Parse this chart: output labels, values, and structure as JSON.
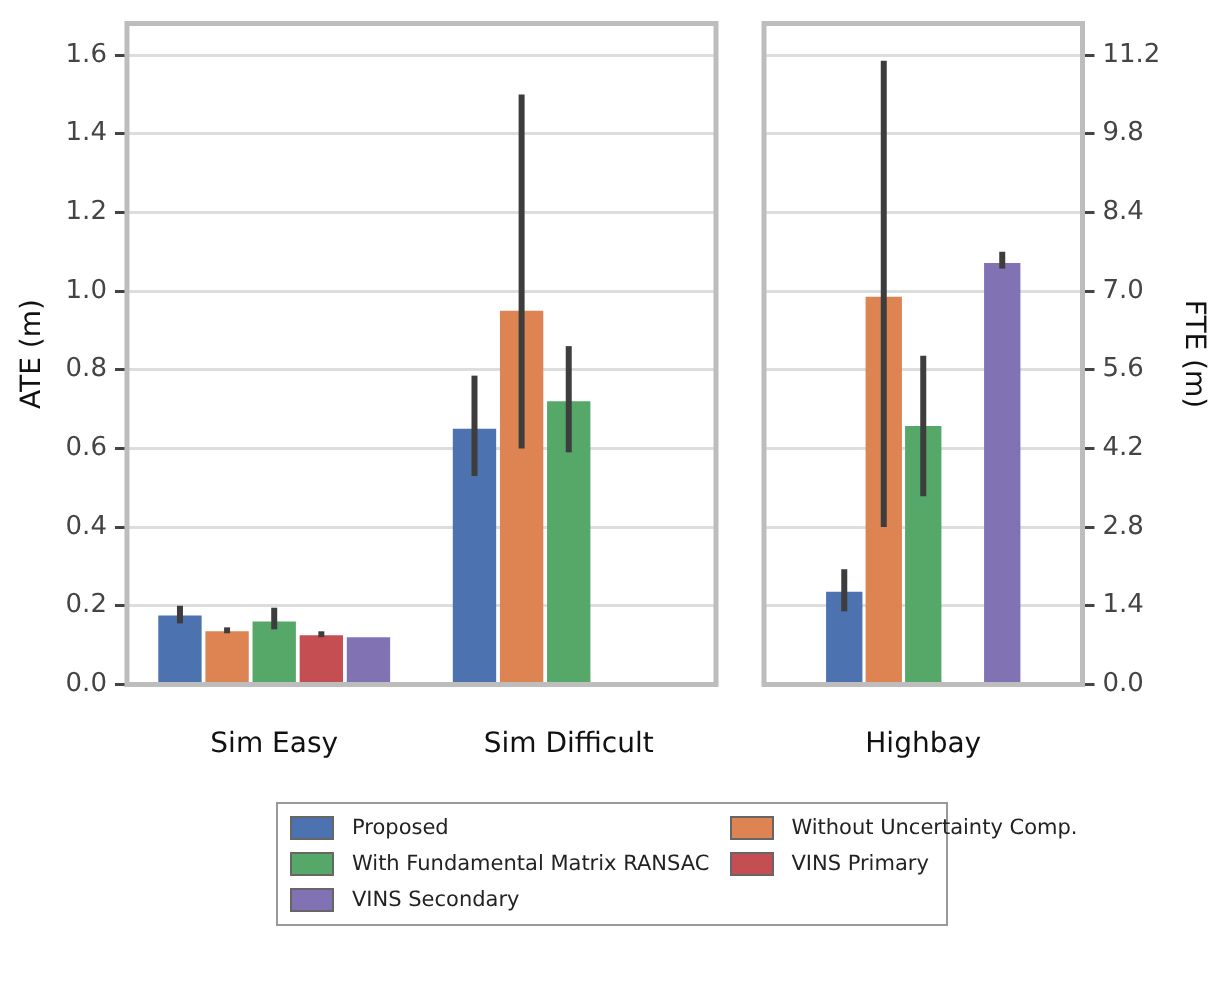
{
  "chart_data": [
    {
      "type": "bar",
      "ylabel": "ATE (m)",
      "categories": [
        "Sim Easy",
        "Sim Difficult"
      ],
      "ylim": [
        0,
        1.68
      ],
      "yticks": [
        {
          "value": 0,
          "label": "0.0"
        },
        0.2,
        0.4,
        0.6,
        0.8,
        {
          "value": 1,
          "label": "1.0"
        },
        1.2,
        1.4,
        1.6
      ],
      "grid": "y",
      "legend": "bottom",
      "series": [
        {
          "name": "Proposed",
          "color": "#4c72b0",
          "values": [
            0.175,
            0.65
          ],
          "errors": [
            [
              0.155,
              0.2
            ],
            [
              0.53,
              0.785
            ]
          ]
        },
        {
          "name": "Without Uncertainty Comp.",
          "color": "#dd8452",
          "values": [
            0.135,
            0.95
          ],
          "errors": [
            [
              0.13,
              0.145
            ],
            [
              0.6,
              1.5
            ]
          ]
        },
        {
          "name": "With Fundamental Matrix RANSAC",
          "color": "#55a868",
          "values": [
            0.16,
            0.72
          ],
          "errors": [
            [
              0.14,
              0.195
            ],
            [
              0.59,
              0.86
            ]
          ]
        },
        {
          "name": "VINS Primary",
          "color": "#c44e52",
          "values": [
            0.125,
            null
          ],
          "errors": [
            [
              0.12,
              0.135
            ],
            null
          ]
        },
        {
          "name": "VINS Secondary",
          "color": "#8172b3",
          "values": [
            0.12,
            null
          ],
          "errors": [
            null,
            null
          ]
        }
      ]
    },
    {
      "type": "bar",
      "y2label": "FTE (m)",
      "categories": [
        "Highbay"
      ],
      "y2lim": [
        0,
        11.76
      ],
      "y2ticks": [
        {
          "value": 0,
          "label": "0.0"
        },
        1.4,
        2.8,
        4.2,
        5.6,
        {
          "value": 7,
          "label": "7.0"
        },
        8.4,
        9.8,
        11.2
      ],
      "grid": "y",
      "legend": "bottom",
      "series": [
        {
          "name": "Proposed",
          "color": "#4c72b0",
          "axis": "y2",
          "values": [
            1.65
          ],
          "errors": [
            [
              1.3,
              2.05
            ]
          ]
        },
        {
          "name": "Without Uncertainty Comp.",
          "color": "#dd8452",
          "axis": "y2",
          "values": [
            6.9
          ],
          "errors": [
            [
              2.8,
              11.1
            ]
          ]
        },
        {
          "name": "With Fundamental Matrix RANSAC",
          "color": "#55a868",
          "axis": "y2",
          "values": [
            4.6
          ],
          "errors": [
            [
              3.35,
              5.85
            ]
          ]
        },
        {
          "name": "VINS Primary",
          "color": "#c44e52",
          "axis": "y2",
          "values": [
            null
          ],
          "errors": [
            null
          ]
        },
        {
          "name": "VINS Secondary",
          "color": "#8172b3",
          "axis": "y2",
          "values": [
            7.5
          ],
          "errors": [
            [
              7.4,
              7.7
            ]
          ]
        }
      ]
    }
  ]
}
